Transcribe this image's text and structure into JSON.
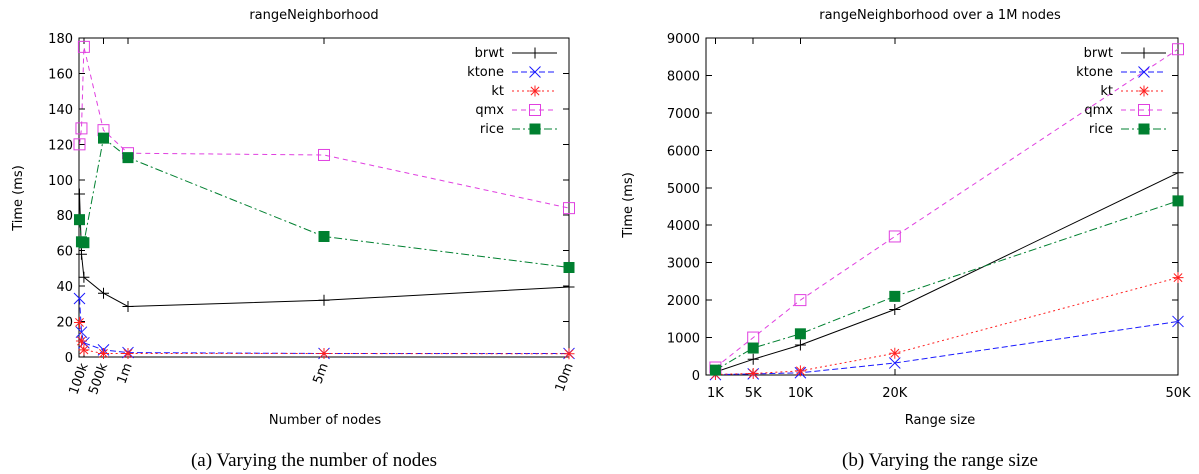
{
  "chart_data": [
    {
      "type": "line",
      "title": "rangeNeighborhood",
      "xlabel": "Number of nodes",
      "ylabel": "Time (ms)",
      "caption": "(a) Varying the number of nodes",
      "x_scale": "linear",
      "xlim": [
        0,
        10000000
      ],
      "ylim": [
        0,
        180
      ],
      "x_ticks": [
        {
          "value": 100000,
          "label": "100k"
        },
        {
          "value": 500000,
          "label": "500k"
        },
        {
          "value": 1000000,
          "label": "1m"
        },
        {
          "value": 5000000,
          "label": "5m"
        },
        {
          "value": 10000000,
          "label": "10m"
        }
      ],
      "y_ticks": [
        0,
        20,
        40,
        60,
        80,
        100,
        120,
        140,
        160,
        180
      ],
      "legend_position": "top-right",
      "grid": false,
      "series": [
        {
          "name": "brwt",
          "color": "#000000",
          "marker": "plus",
          "dash": "",
          "points": [
            [
              10000,
              92
            ],
            [
              50000,
              58
            ],
            [
              100000,
              45
            ],
            [
              500000,
              36
            ],
            [
              1000000,
              28.5
            ],
            [
              5000000,
              32
            ],
            [
              10000000,
              39.5
            ]
          ]
        },
        {
          "name": "ktone",
          "color": "#1a1aff",
          "marker": "x",
          "dash": "6,3",
          "points": [
            [
              10000,
              33
            ],
            [
              50000,
              14
            ],
            [
              100000,
              8
            ],
            [
              500000,
              4
            ],
            [
              1000000,
              2.5
            ],
            [
              5000000,
              2
            ],
            [
              10000000,
              2
            ]
          ]
        },
        {
          "name": "kt",
          "color": "#ff2020",
          "marker": "star",
          "dash": "2,3",
          "points": [
            [
              10000,
              19.5
            ],
            [
              50000,
              9
            ],
            [
              100000,
              4
            ],
            [
              500000,
              2
            ],
            [
              1000000,
              2
            ],
            [
              5000000,
              2
            ],
            [
              10000000,
              1.8
            ]
          ]
        },
        {
          "name": "qmx",
          "color": "#e040e0",
          "marker": "square",
          "dash": "5,4",
          "points": [
            [
              10000,
              120
            ],
            [
              50000,
              129
            ],
            [
              100000,
              175
            ],
            [
              500000,
              128
            ],
            [
              1000000,
              115
            ],
            [
              5000000,
              114
            ],
            [
              10000000,
              84
            ]
          ]
        },
        {
          "name": "rice",
          "color": "#008030",
          "marker": "filledsquare",
          "dash": "8,3,2,3",
          "points": [
            [
              10000,
              77.5
            ],
            [
              50000,
              65
            ],
            [
              100000,
              64.5
            ],
            [
              500000,
              123.5
            ],
            [
              1000000,
              112.5
            ],
            [
              5000000,
              68
            ],
            [
              10000000,
              50.5
            ]
          ]
        }
      ]
    },
    {
      "type": "line",
      "title": "rangeNeighborhood over a 1M nodes",
      "xlabel": "Range size",
      "ylabel": "Time (ms)",
      "caption": "(b) Varying the range size",
      "x_scale": "linear",
      "xlim": [
        0,
        50000
      ],
      "ylim": [
        0,
        9000
      ],
      "x_ticks": [
        {
          "value": 1000,
          "label": "1K"
        },
        {
          "value": 5000,
          "label": "5K"
        },
        {
          "value": 10000,
          "label": "10K"
        },
        {
          "value": 20000,
          "label": "20K"
        },
        {
          "value": 50000,
          "label": "50K"
        }
      ],
      "y_ticks": [
        0,
        1000,
        2000,
        3000,
        4000,
        5000,
        6000,
        7000,
        8000,
        9000
      ],
      "legend_position": "top-right",
      "grid": false,
      "series": [
        {
          "name": "brwt",
          "color": "#000000",
          "marker": "plus",
          "dash": "",
          "points": [
            [
              1000,
              80
            ],
            [
              5000,
              420
            ],
            [
              10000,
              800
            ],
            [
              20000,
              1750
            ],
            [
              50000,
              5400
            ]
          ]
        },
        {
          "name": "ktone",
          "color": "#1a1aff",
          "marker": "x",
          "dash": "6,3",
          "points": [
            [
              1000,
              10
            ],
            [
              5000,
              30
            ],
            [
              10000,
              60
            ],
            [
              20000,
              320
            ],
            [
              50000,
              1430
            ]
          ]
        },
        {
          "name": "kt",
          "color": "#ff2020",
          "marker": "star",
          "dash": "2,3",
          "points": [
            [
              1000,
              15
            ],
            [
              5000,
              40
            ],
            [
              10000,
              110
            ],
            [
              20000,
              580
            ],
            [
              50000,
              2600
            ]
          ]
        },
        {
          "name": "qmx",
          "color": "#e040e0",
          "marker": "square",
          "dash": "5,4",
          "points": [
            [
              1000,
              200
            ],
            [
              5000,
              1000
            ],
            [
              10000,
              2000
            ],
            [
              20000,
              3700
            ],
            [
              50000,
              8700
            ]
          ]
        },
        {
          "name": "rice",
          "color": "#008030",
          "marker": "filledsquare",
          "dash": "8,3,2,3",
          "points": [
            [
              1000,
              130
            ],
            [
              5000,
              720
            ],
            [
              10000,
              1100
            ],
            [
              20000,
              2100
            ],
            [
              50000,
              4650
            ]
          ]
        }
      ]
    }
  ]
}
